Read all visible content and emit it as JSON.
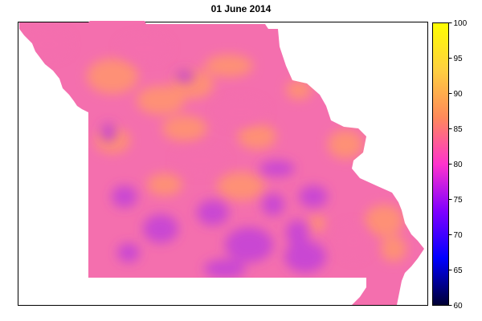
{
  "title": "01 June 2014",
  "legend": {
    "min": 60,
    "max": 100,
    "ticks": [
      60,
      65,
      70,
      75,
      80,
      85,
      90,
      95,
      100
    ],
    "colors": [
      "#000033",
      "#0000ff",
      "#8000ff",
      "#ff33cc",
      "#ff8a5a",
      "#ffd040",
      "#ffff00"
    ]
  },
  "map": {
    "base_color": "#f46fae",
    "warm_color": "#ff9470",
    "cool_color": "#c240d9"
  }
}
